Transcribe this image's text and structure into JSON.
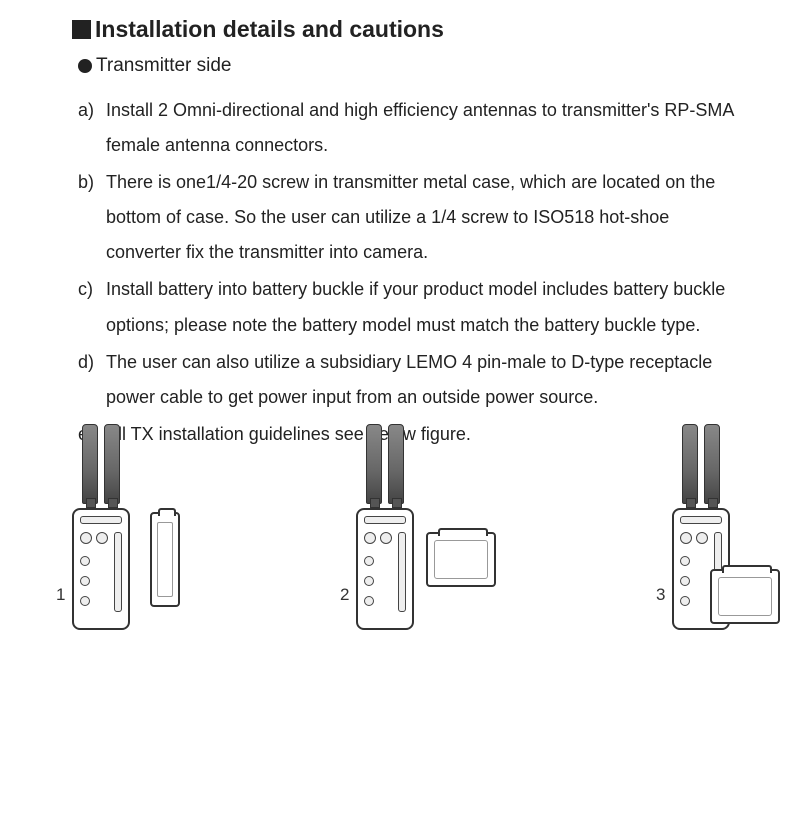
{
  "heading": "Installation details and cautions",
  "subheading": "Transmitter side",
  "items": [
    {
      "marker": "a)",
      "text": "Install 2 Omni-directional and high efficiency antennas to transmitter's RP-SMA female antenna connectors."
    },
    {
      "marker": "b)",
      "text": "There is one1/4-20 screw in transmitter metal case, which are located on the bottom of case. So the user can utilize a 1/4 screw to ISO518 hot-shoe converter fix the transmitter into camera."
    },
    {
      "marker": "c)",
      "text": "Install battery into battery buckle if your product model includes battery buckle options; please note the battery model must match the battery buckle type."
    },
    {
      "marker": "d)",
      "text": "The user can also utilize a subsidiary LEMO 4 pin-male to D-type receptacle power cable to get power input from an outside power source."
    },
    {
      "marker": "e)",
      "text": "All TX installation guidelines see below figure."
    }
  ],
  "figure_labels": [
    "1",
    "2",
    "3"
  ]
}
